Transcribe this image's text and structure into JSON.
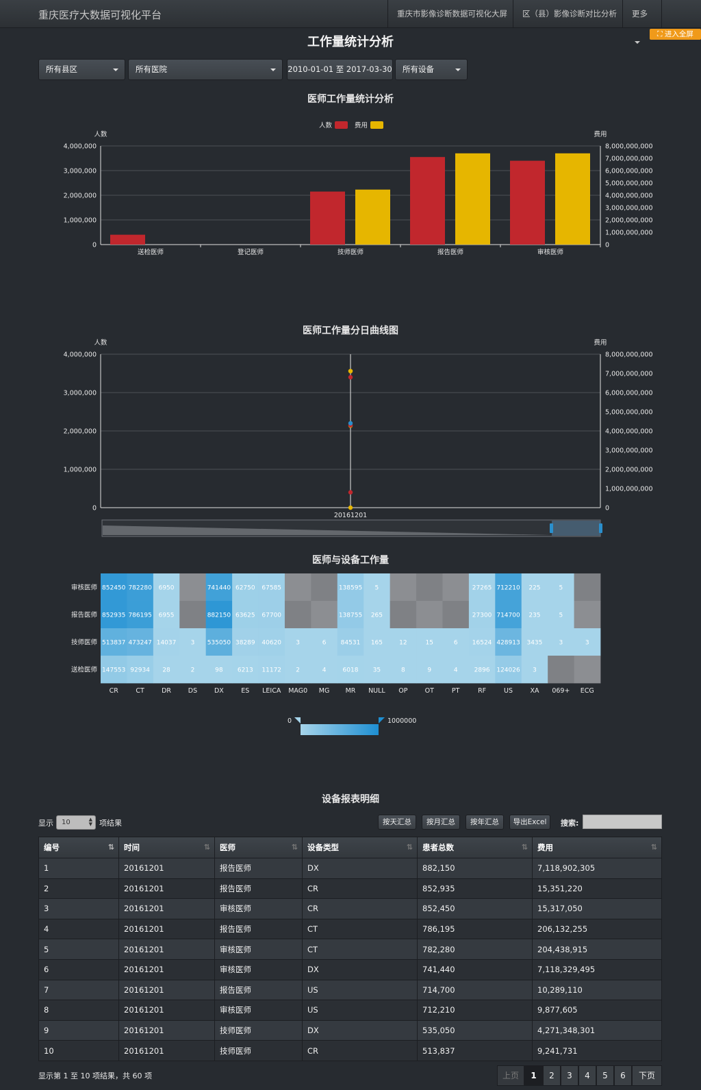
{
  "navbar": {
    "brand": "重庆医疗大数据可视化平台",
    "links": [
      "重庆市影像诊断数据可视化大屏",
      "区（县）影像诊断对比分析"
    ],
    "more": "更多"
  },
  "fullscreen_label": "进入全屏",
  "page_title": "工作量统计分析",
  "filters": {
    "county": "所有县区",
    "hospital": "所有医院",
    "date_range": "2010-01-01 至 2017-03-30",
    "device": "所有设备"
  },
  "colors": {
    "red": "#c1272d",
    "yellow": "#e6b600",
    "blue": "#2a8fcc",
    "heat_low": "#a6d4ea",
    "heat_high": "#1e8fd2",
    "heat_null": "#86888c"
  },
  "chart_data": [
    {
      "type": "bar",
      "title": "医师工作量统计分析",
      "categories": [
        "送检医师",
        "登记医师",
        "技师医师",
        "报告医师",
        "审核医师"
      ],
      "series": [
        {
          "name": "人数",
          "axis": "left",
          "values": [
            400000,
            0,
            2150000,
            3550000,
            3400000
          ]
        },
        {
          "name": "费用",
          "axis": "right",
          "values": [
            0,
            0,
            4460000000,
            7400000000,
            7400000000
          ]
        }
      ],
      "ylabel": "人数",
      "ylabel_right": "费用",
      "ylim": [
        0,
        4000000
      ],
      "ylim_right": [
        0,
        8000000000
      ],
      "yticks": [
        "4,000,000",
        "3,000,000",
        "2,000,000",
        "1,000,000",
        "0"
      ],
      "yticks_right": [
        "8,000,000,000",
        "7,000,000,000",
        "6,000,000,000",
        "5,000,000,000",
        "4,000,000,000",
        "3,000,000,000",
        "2,000,000,000",
        "1,000,000,000",
        "0"
      ],
      "legend": "top-center",
      "grid": true
    },
    {
      "type": "scatter",
      "title": "医师工作量分日曲线图",
      "x": [
        "20161201"
      ],
      "series": [
        {
          "color": "yellow",
          "axis": "right",
          "values": [
            7118902305,
            7118329495,
            4271348301,
            0
          ]
        },
        {
          "color": "red",
          "axis": "left",
          "values": [
            3400000,
            2150000,
            400000
          ]
        },
        {
          "color": "blue",
          "axis": "left",
          "values": [
            2200000
          ]
        }
      ],
      "ylabel": "人数",
      "ylabel_right": "费用",
      "ylim": [
        0,
        4000000
      ],
      "ylim_right": [
        0,
        8000000000
      ],
      "yticks": [
        "4,000,000",
        "3,000,000",
        "2,000,000",
        "1,000,000",
        "0"
      ],
      "yticks_right": [
        "8,000,000,000",
        "7,000,000,000",
        "6,000,000,000",
        "5,000,000,000",
        "4,000,000,000",
        "3,000,000,000",
        "2,000,000,000",
        "1,000,000,000",
        "0"
      ],
      "grid": true
    },
    {
      "type": "heatmap",
      "title": "医师与设备工作量",
      "x": [
        "CR",
        "CT",
        "DR",
        "DS",
        "DX",
        "ES",
        "LEICA",
        "MAG0",
        "MG",
        "MR",
        "NULL",
        "OP",
        "OT",
        "PT",
        "RF",
        "US",
        "XA",
        "069+",
        "ECG"
      ],
      "y": [
        "审核医师",
        "报告医师",
        "技师医师",
        "送检医师"
      ],
      "values": [
        [
          852450,
          782280,
          6950,
          null,
          741440,
          62750,
          67585,
          null,
          null,
          138595,
          5,
          null,
          null,
          null,
          27265,
          712210,
          225,
          5,
          null
        ],
        [
          852935,
          786195,
          6955,
          null,
          882150,
          63625,
          67700,
          null,
          null,
          138755,
          265,
          null,
          null,
          null,
          27300,
          714700,
          235,
          5,
          null
        ],
        [
          513837,
          473247,
          14037,
          3,
          535050,
          38289,
          40620,
          3,
          6,
          84531,
          165,
          12,
          15,
          6,
          16524,
          428913,
          3435,
          3,
          3
        ],
        [
          147553,
          92934,
          28,
          2,
          98,
          6213,
          11172,
          2,
          4,
          6018,
          35,
          8,
          9,
          4,
          2896,
          124026,
          3,
          null,
          null
        ]
      ],
      "visual_map": {
        "min": 0,
        "max": 1000000,
        "min_label": "0",
        "max_label": "1000000"
      }
    }
  ],
  "table": {
    "title": "设备报表明细",
    "show_label": "显示",
    "page_length": "10",
    "results_label": "项结果",
    "buttons": [
      "按天汇总",
      "按月汇总",
      "按年汇总",
      "导出Excel"
    ],
    "search_label": "搜索:",
    "headers": [
      "编号",
      "时间",
      "医师",
      "设备类型",
      "患者总数",
      "费用"
    ],
    "rows": [
      [
        "1",
        "20161201",
        "报告医师",
        "DX",
        "882,150",
        "7,118,902,305"
      ],
      [
        "2",
        "20161201",
        "报告医师",
        "CR",
        "852,935",
        "15,351,220"
      ],
      [
        "3",
        "20161201",
        "审核医师",
        "CR",
        "852,450",
        "15,317,050"
      ],
      [
        "4",
        "20161201",
        "报告医师",
        "CT",
        "786,195",
        "206,132,255"
      ],
      [
        "5",
        "20161201",
        "审核医师",
        "CT",
        "782,280",
        "204,438,915"
      ],
      [
        "6",
        "20161201",
        "审核医师",
        "DX",
        "741,440",
        "7,118,329,495"
      ],
      [
        "7",
        "20161201",
        "报告医师",
        "US",
        "714,700",
        "10,289,110"
      ],
      [
        "8",
        "20161201",
        "审核医师",
        "US",
        "712,210",
        "9,877,605"
      ],
      [
        "9",
        "20161201",
        "技师医师",
        "DX",
        "535,050",
        "4,271,348,301"
      ],
      [
        "10",
        "20161201",
        "技师医师",
        "CR",
        "513,837",
        "9,241,731"
      ]
    ],
    "info": "显示第 1 至 10 项结果，共 60 项",
    "pager": {
      "prev": "上页",
      "pages": [
        "1",
        "2",
        "3",
        "4",
        "5",
        "6"
      ],
      "next": "下页",
      "current": "1"
    }
  }
}
